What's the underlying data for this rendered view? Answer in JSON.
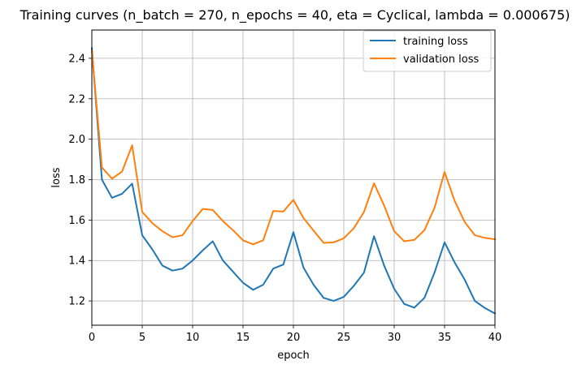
{
  "chart_data": {
    "type": "line",
    "title": "Training curves (n_batch = 270, n_epochs = 40, eta = Cyclical, lambda = 0.000675)",
    "xlabel": "epoch",
    "ylabel": "loss",
    "xlim": [
      0,
      40
    ],
    "ylim": [
      1.08,
      2.54
    ],
    "xticks": [
      0,
      5,
      10,
      15,
      20,
      25,
      30,
      35,
      40
    ],
    "yticks": [
      1.2,
      1.4,
      1.6,
      1.8,
      2.0,
      2.2,
      2.4
    ],
    "grid": true,
    "legend_position": "top-right",
    "x": [
      0,
      1,
      2,
      3,
      4,
      5,
      6,
      7,
      8,
      9,
      10,
      11,
      12,
      13,
      14,
      15,
      16,
      17,
      18,
      19,
      20,
      21,
      22,
      23,
      24,
      25,
      26,
      27,
      28,
      29,
      30,
      31,
      32,
      33,
      34,
      35,
      36,
      37,
      38,
      39,
      40
    ],
    "series": [
      {
        "name": "training loss",
        "color": "#1f77b4",
        "values": [
          2.45,
          1.8,
          1.71,
          1.73,
          1.78,
          1.525,
          1.455,
          1.375,
          1.35,
          1.36,
          1.4,
          1.45,
          1.495,
          1.4,
          1.345,
          1.29,
          1.255,
          1.28,
          1.36,
          1.38,
          1.54,
          1.365,
          1.28,
          1.215,
          1.2,
          1.22,
          1.275,
          1.34,
          1.52,
          1.375,
          1.26,
          1.185,
          1.167,
          1.215,
          1.34,
          1.49,
          1.39,
          1.305,
          1.2,
          1.165,
          1.138
        ]
      },
      {
        "name": "validation loss",
        "color": "#ff7f0e",
        "values": [
          2.44,
          1.86,
          1.805,
          1.84,
          1.97,
          1.64,
          1.585,
          1.545,
          1.515,
          1.525,
          1.595,
          1.655,
          1.65,
          1.595,
          1.55,
          1.5,
          1.48,
          1.5,
          1.645,
          1.642,
          1.7,
          1.61,
          1.548,
          1.487,
          1.49,
          1.51,
          1.56,
          1.64,
          1.782,
          1.672,
          1.545,
          1.495,
          1.502,
          1.55,
          1.66,
          1.838,
          1.695,
          1.59,
          1.525,
          1.512,
          1.505
        ]
      }
    ]
  }
}
